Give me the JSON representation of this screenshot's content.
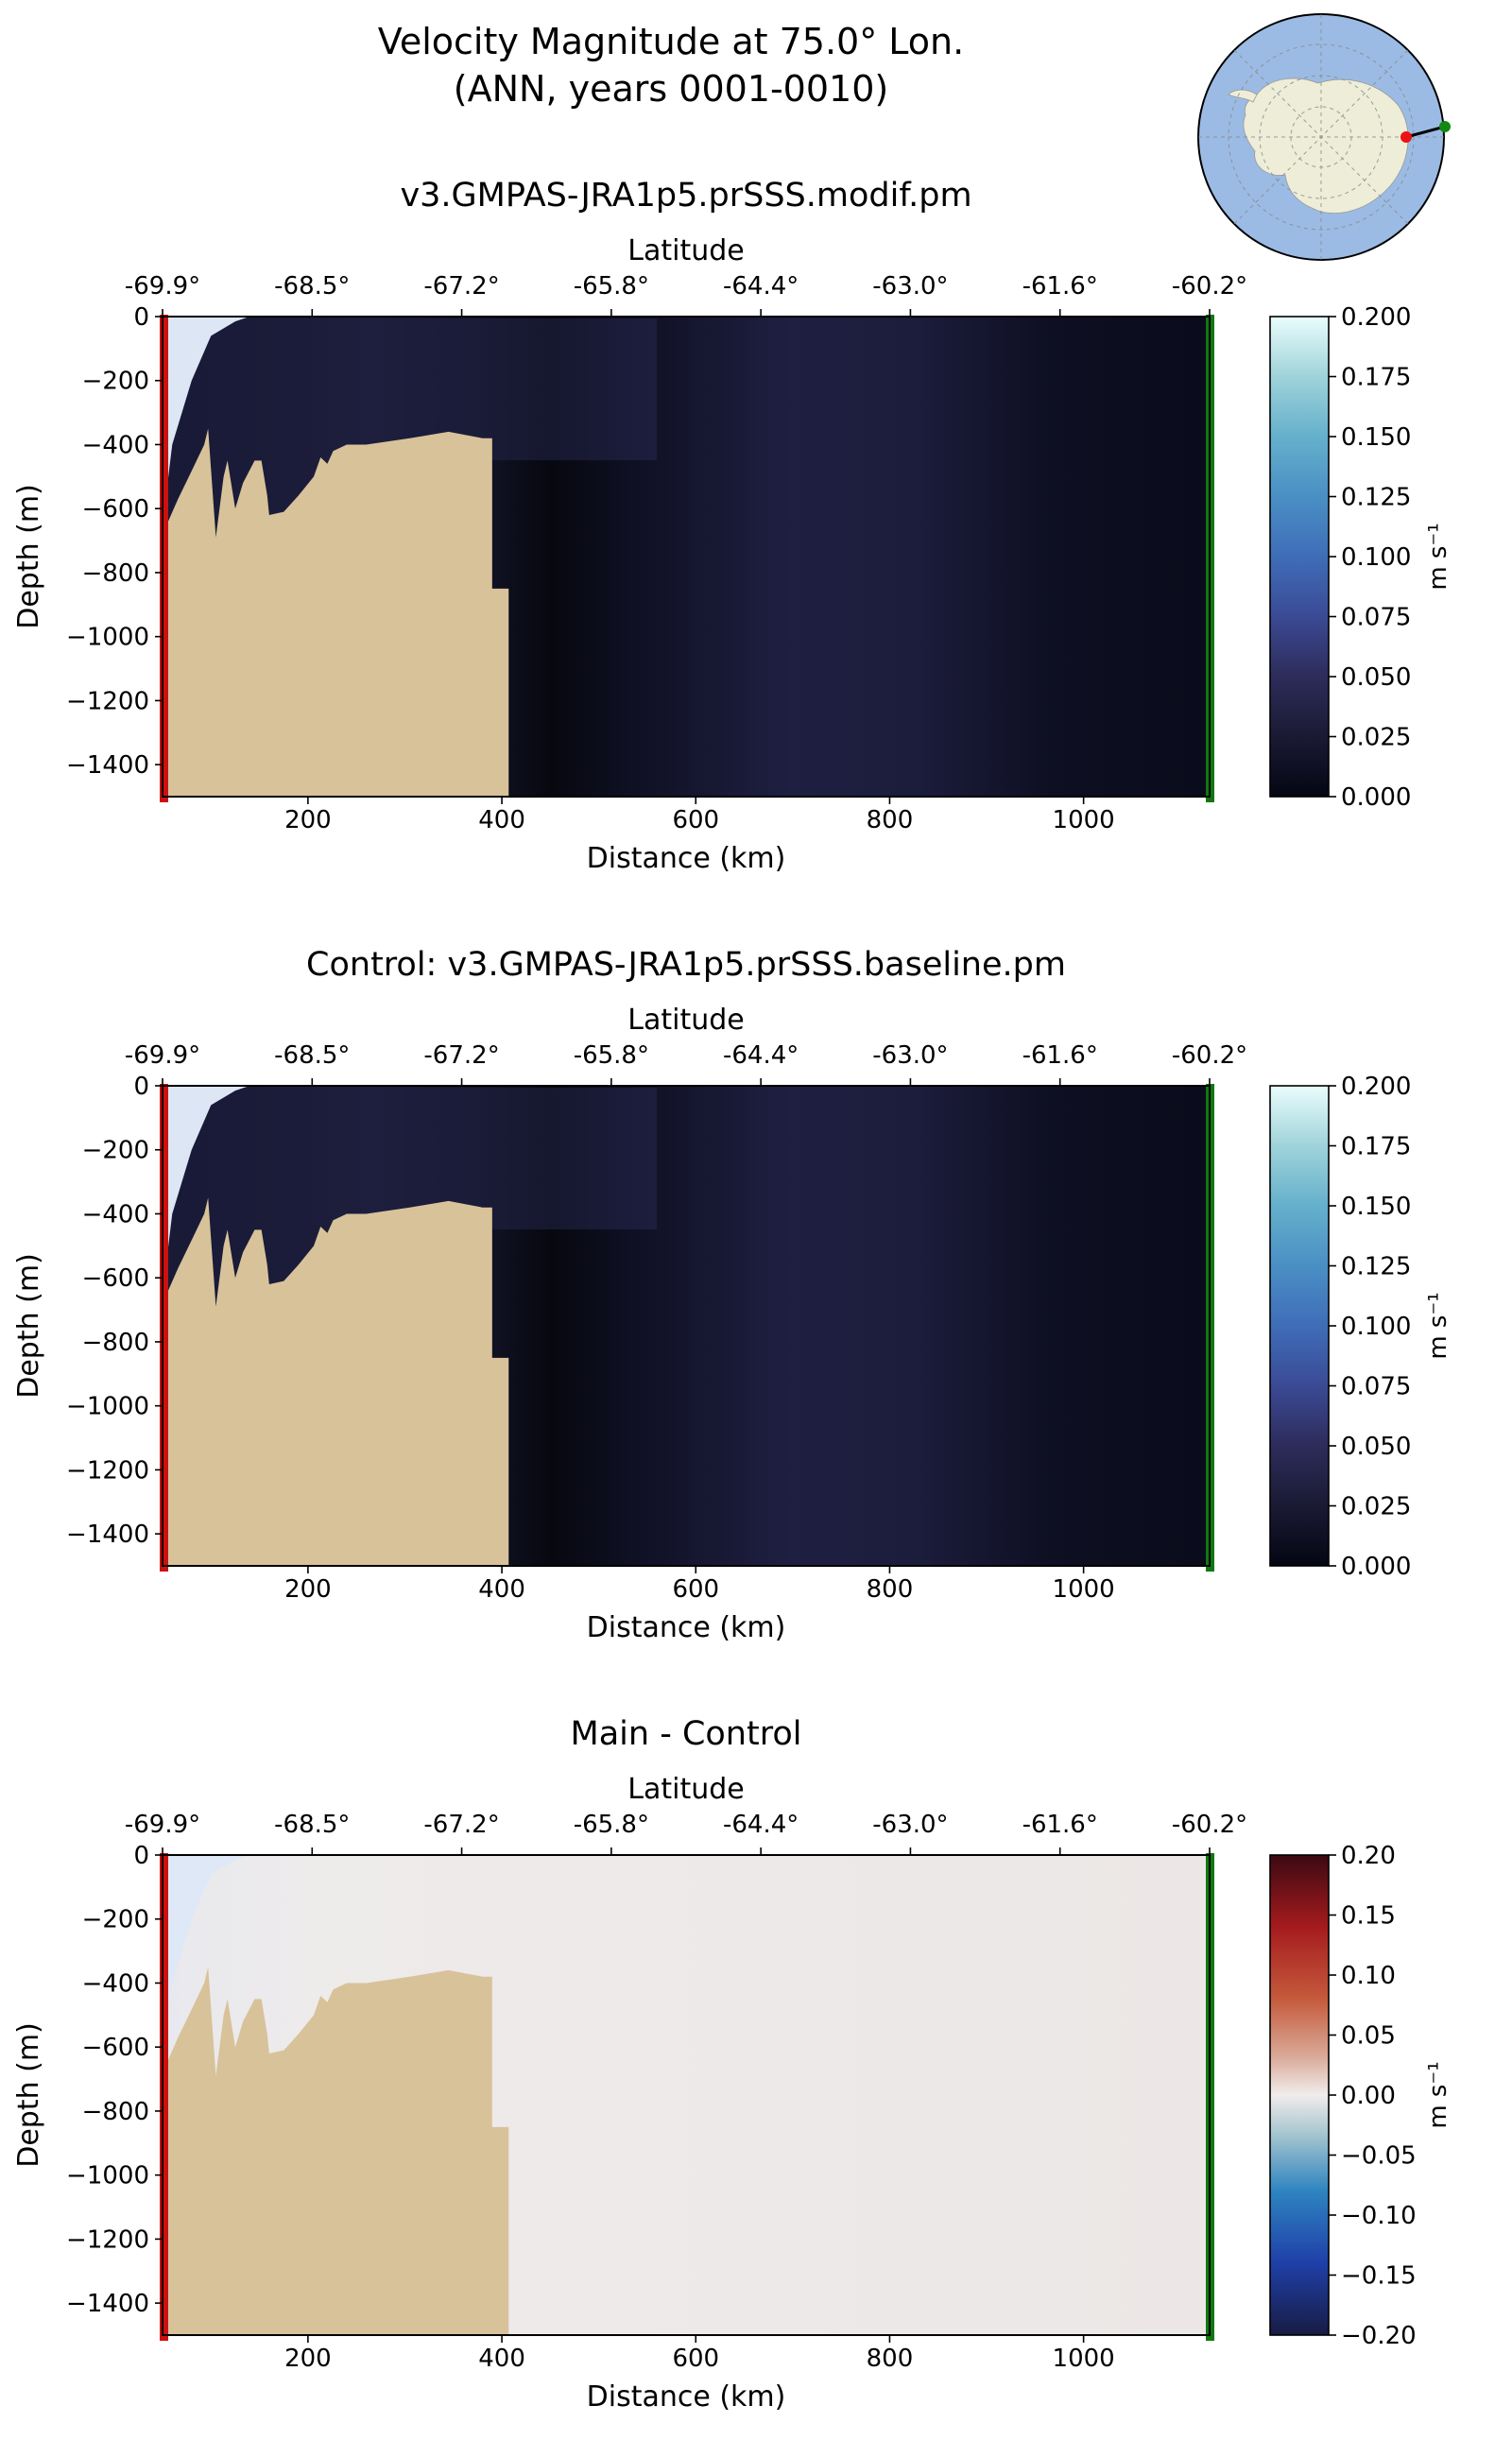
{
  "figure": {
    "title_line1": "Velocity Magnitude at 75.0° Lon.",
    "title_line2": "(ANN, years 0001-0010)"
  },
  "inset_map": {
    "description": "Antarctic polar stereographic locator",
    "start_marker_color": "#ee1111",
    "end_marker_color": "#118811"
  },
  "colors": {
    "land": "#d8c299",
    "left_edge": "#cc1111",
    "right_edge": "#117711",
    "ocean_dark": "#0b0c1d",
    "ocean_mid": "#1e1e40",
    "diff_bg": "#ece8e7"
  },
  "chart_data": [
    {
      "type": "heatmap",
      "id": "main",
      "title": "v3.GMPAS-JRA1p5.prSSS.modif.pm",
      "xlabel": "Distance (km)",
      "ylabel": "Depth (m)",
      "top_label": "Latitude",
      "xlim": [
        50,
        1130
      ],
      "ylim": [
        -1500,
        0
      ],
      "xticks": [
        200,
        400,
        600,
        800,
        1000
      ],
      "yticks": [
        0,
        -200,
        -400,
        -600,
        -800,
        -1000,
        -1200,
        -1400
      ],
      "lat_ticks": [
        "-69.9°",
        "-68.5°",
        "-67.2°",
        "-65.8°",
        "-64.4°",
        "-63.0°",
        "-61.6°",
        "-60.2°"
      ],
      "colorbar": {
        "label": "m s⁻¹",
        "min": 0.0,
        "max": 0.2,
        "ticks": [
          "0.000",
          "0.025",
          "0.050",
          "0.075",
          "0.100",
          "0.125",
          "0.150",
          "0.175",
          "0.200"
        ],
        "colormap": "ice"
      }
    },
    {
      "type": "heatmap",
      "id": "control",
      "title": "Control: v3.GMPAS-JRA1p5.prSSS.baseline.pm",
      "xlabel": "Distance (km)",
      "ylabel": "Depth (m)",
      "top_label": "Latitude",
      "xlim": [
        50,
        1130
      ],
      "ylim": [
        -1500,
        0
      ],
      "xticks": [
        200,
        400,
        600,
        800,
        1000
      ],
      "yticks": [
        0,
        -200,
        -400,
        -600,
        -800,
        -1000,
        -1200,
        -1400
      ],
      "lat_ticks": [
        "-69.9°",
        "-68.5°",
        "-67.2°",
        "-65.8°",
        "-64.4°",
        "-63.0°",
        "-61.6°",
        "-60.2°"
      ],
      "colorbar": {
        "label": "m s⁻¹",
        "min": 0.0,
        "max": 0.2,
        "ticks": [
          "0.000",
          "0.025",
          "0.050",
          "0.075",
          "0.100",
          "0.125",
          "0.150",
          "0.175",
          "0.200"
        ],
        "colormap": "ice"
      }
    },
    {
      "type": "heatmap",
      "id": "diff",
      "title": "Main - Control",
      "xlabel": "Distance (km)",
      "ylabel": "Depth (m)",
      "top_label": "Latitude",
      "xlim": [
        50,
        1130
      ],
      "ylim": [
        -1500,
        0
      ],
      "xticks": [
        200,
        400,
        600,
        800,
        1000
      ],
      "yticks": [
        0,
        -200,
        -400,
        -600,
        -800,
        -1000,
        -1200,
        -1400
      ],
      "lat_ticks": [
        "-69.9°",
        "-68.5°",
        "-67.2°",
        "-65.8°",
        "-64.4°",
        "-63.0°",
        "-61.6°",
        "-60.2°"
      ],
      "colorbar": {
        "label": "m s⁻¹",
        "min": -0.2,
        "max": 0.2,
        "ticks": [
          "−0.20",
          "−0.15",
          "−0.10",
          "−0.05",
          "0.00",
          "0.05",
          "0.10",
          "0.15",
          "0.20"
        ],
        "colormap": "balance"
      }
    }
  ],
  "bathymetry": {
    "bottom_depth_profile_km_m": [
      [
        50,
        -680
      ],
      [
        66,
        -570
      ],
      [
        82,
        -470
      ],
      [
        93,
        -400
      ],
      [
        97,
        -350
      ],
      [
        105,
        -690
      ],
      [
        113,
        -500
      ],
      [
        117,
        -450
      ],
      [
        125,
        -600
      ],
      [
        133,
        -520
      ],
      [
        145,
        -450
      ],
      [
        152,
        -450
      ],
      [
        158,
        -560
      ],
      [
        160,
        -620
      ],
      [
        175,
        -610
      ],
      [
        190,
        -560
      ],
      [
        206,
        -500
      ],
      [
        213,
        -440
      ],
      [
        220,
        -460
      ],
      [
        226,
        -420
      ],
      [
        240,
        -400
      ],
      [
        260,
        -400
      ],
      [
        305,
        -380
      ],
      [
        345,
        -360
      ],
      [
        380,
        -380
      ],
      [
        390,
        -380
      ]
    ]
  }
}
